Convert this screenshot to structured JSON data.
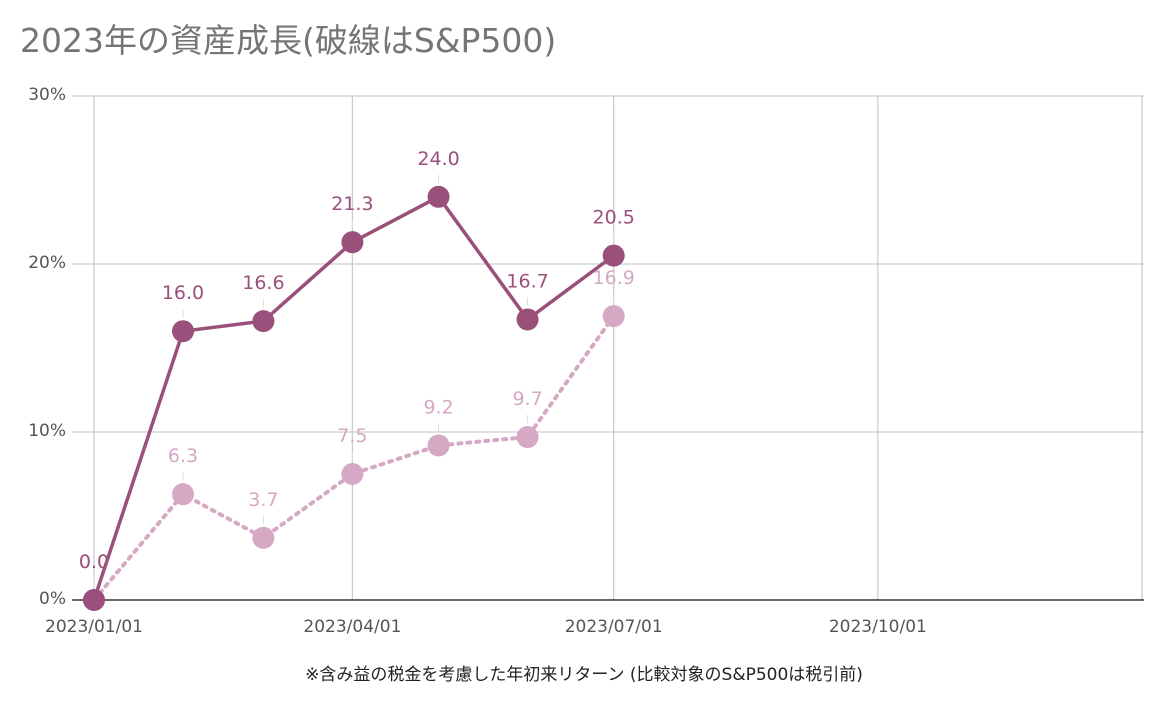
{
  "title": "2023年の資産成長(破線はS&P500)",
  "footnote": "※含み益の税金を考慮した年初来リターン (比較対象のS&P500は税引前)",
  "colors": {
    "series1": "#99507a",
    "series2": "#d5a8c4",
    "grid": "#cccccc",
    "axis": "#333333"
  },
  "chart_data": {
    "type": "line",
    "title": "2023年の資産成長(破線はS&P500)",
    "x": [
      "2023/01/01",
      "2023/02/01",
      "2023/03/01",
      "2023/04/01",
      "2023/05/01",
      "2023/06/01",
      "2023/07/01"
    ],
    "series": [
      {
        "values": [
          0.0,
          16.0,
          16.6,
          21.3,
          24.0,
          16.7,
          20.5
        ],
        "style": "solid",
        "color": "#99507a"
      },
      {
        "name": "S&P500",
        "values": [
          0.0,
          6.3,
          3.7,
          7.5,
          9.2,
          9.7,
          16.9
        ],
        "style": "dotted",
        "color": "#d5a8c4"
      }
    ],
    "xlim": [
      "2023/01/01",
      "2024/01/01"
    ],
    "xticks": [
      "2023/01/01",
      "2023/04/01",
      "2023/07/01",
      "2023/10/01"
    ],
    "ylim": [
      0,
      30
    ],
    "yticks": [
      0,
      10,
      20,
      30
    ],
    "ytick_labels": [
      "0%",
      "10%",
      "20%",
      "30%"
    ],
    "grid": true,
    "legend": "none"
  }
}
